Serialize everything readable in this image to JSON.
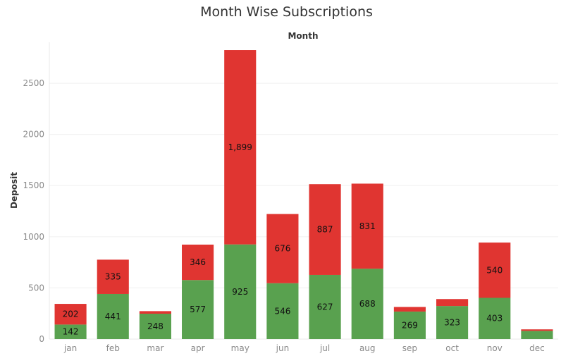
{
  "chart_data": {
    "type": "bar",
    "stacked": true,
    "title": "Month Wise Subscriptions",
    "x_header": "Month",
    "xlabel": "",
    "ylabel": "Deposit",
    "ylim": [
      0,
      2900
    ],
    "yticks": [
      0,
      500,
      1000,
      1500,
      2000,
      2500
    ],
    "grid": true,
    "legend": "none",
    "categories": [
      "jan",
      "feb",
      "mar",
      "apr",
      "may",
      "jun",
      "jul",
      "aug",
      "sep",
      "oct",
      "nov",
      "dec"
    ],
    "series": [
      {
        "color": "#59a14f",
        "values": [
          142,
          441,
          248,
          577,
          925,
          546,
          627,
          688,
          269,
          323,
          403,
          80
        ],
        "labels": [
          "142",
          "441",
          "248",
          "577",
          "925",
          "546",
          "627",
          "688",
          "269",
          "323",
          "403",
          ""
        ]
      },
      {
        "color": "#e03531",
        "values": [
          202,
          335,
          25,
          346,
          1899,
          676,
          887,
          831,
          45,
          68,
          540,
          15
        ],
        "labels": [
          "202",
          "335",
          "",
          "346",
          "1,899",
          "676",
          "887",
          "831",
          "",
          "",
          "540",
          ""
        ]
      }
    ]
  }
}
